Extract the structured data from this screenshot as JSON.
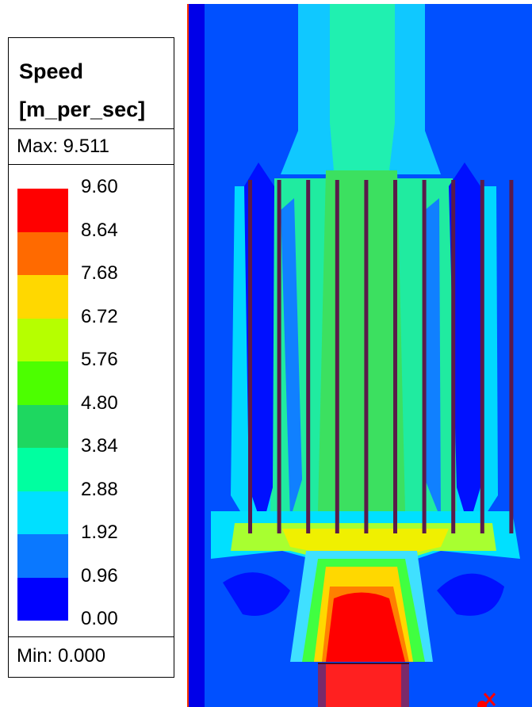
{
  "legend": {
    "title_line1": "Speed",
    "title_line2": "[m_per_sec]",
    "max_label": "Max: 9.511",
    "min_label": "Min: 0.000",
    "ticks": [
      "9.60",
      "8.64",
      "7.68",
      "6.72",
      "5.76",
      "4.80",
      "3.84",
      "2.88",
      "1.92",
      "0.96",
      "0.00"
    ],
    "band_colors": [
      "#ff0000",
      "#ff6a00",
      "#ffd800",
      "#b6ff00",
      "#4cff00",
      "#1ed760",
      "#00ffa0",
      "#00e0ff",
      "#0a78ff",
      "#0000ff"
    ]
  },
  "field": {
    "background_color": "#0050ff",
    "border_color": "#ff3300",
    "vane_color": "#5a1a4a",
    "vane_count": 10
  }
}
